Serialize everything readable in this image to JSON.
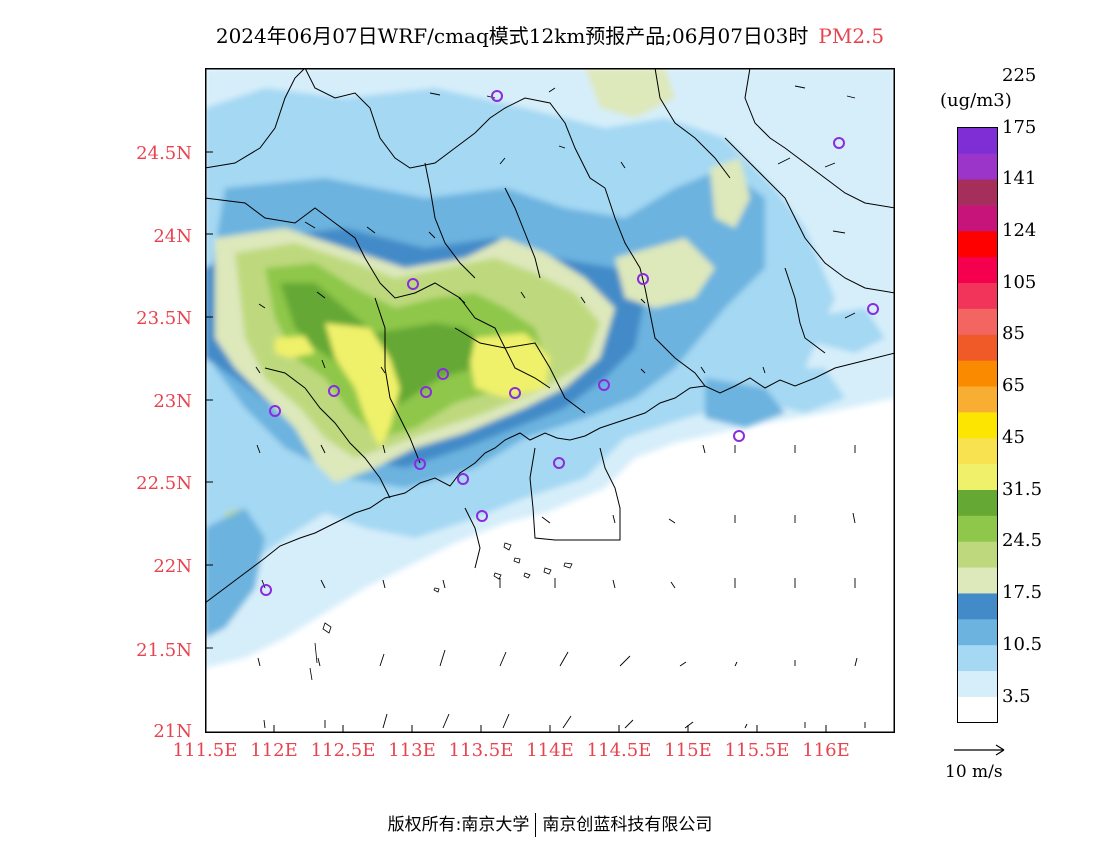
{
  "title": {
    "main": "2024年06月07日WRF/cmaq模式12km预报产品;06月07日03时",
    "variable": "PM2.5"
  },
  "axes": {
    "y_ticks": [
      "24.5N",
      "24N",
      "23.5N",
      "23N",
      "22.5N",
      "22N",
      "21.5N",
      "21N"
    ],
    "x_ticks": [
      "111.5E",
      "112E",
      "112.5E",
      "113E",
      "113.5E",
      "114E",
      "114.5E",
      "115E",
      "115.5E",
      "116E"
    ]
  },
  "colorbar": {
    "unit": "(ug/m3)",
    "colors": [
      "#ffffff",
      "#d6eefa",
      "#a4d8f3",
      "#6cb3df",
      "#428bc8",
      "#dde8bb",
      "#bed97d",
      "#8ec74a",
      "#65a834",
      "#f0f16a",
      "#f8e24f",
      "#fce500",
      "#f8ae33",
      "#fa8a00",
      "#ef5a28",
      "#f26560",
      "#f2335a",
      "#f5004e",
      "#ff0000",
      "#c6147a",
      "#a52f5a",
      "#9b34c8",
      "#7f2ed6"
    ],
    "labels": [
      "3.5",
      "10.5",
      "17.5",
      "24.5",
      "31.5",
      "45",
      "65",
      "85",
      "105",
      "124",
      "141",
      "175",
      "225"
    ]
  },
  "wind_reference": "10 m/s",
  "footer": {
    "left": "版权所有:南京大学",
    "right": "南京创蓝科技有限公司"
  },
  "map": {
    "station_marker_color": "#8a2be2",
    "coast_color": "#000000"
  }
}
